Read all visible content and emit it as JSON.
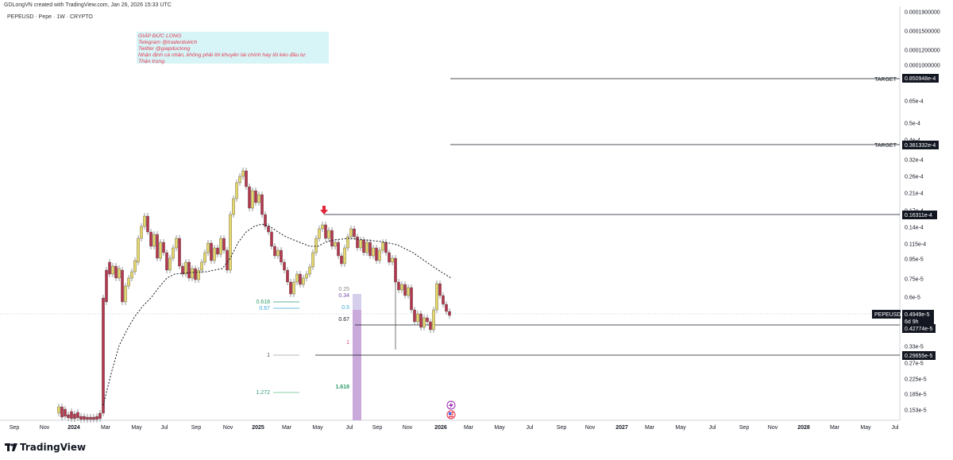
{
  "header": {
    "created_by": "GDLongVN created with TradingView.com, Jan 26, 2026 15:33 UTC",
    "symbol_line": "PEPEUSD · Pepe · 1W · CRYPTO"
  },
  "note": {
    "lines": [
      "GIÁP ĐỨC LONG",
      "Telegram @traderduklch",
      "Twitter @giapduclong",
      "Nhận định cá nhân, không phải lời khuyên tài chính hay lôi kéo đầu tư.",
      "Thận trọng."
    ]
  },
  "price_axis": {
    "ticks": [
      "0.0001900000",
      "0.0001500000",
      "0.0001200000",
      "0.0001000000",
      "0.80e-4",
      "0.65e-4",
      "0.5e-4",
      "0.4e-4",
      "0.32e-4",
      "0.26e-4",
      "0.21e-4",
      "0.17e-4",
      "0.14e-4",
      "0.115e-4",
      "0.95e-5",
      "0.75e-5",
      "0.6e-5",
      "0.33e-5",
      "0.27e-5",
      "0.225e-5",
      "0.185e-5",
      "0.153e-5"
    ]
  },
  "time_axis": {
    "labels": [
      "Sep",
      "Nov",
      "2024",
      "Mar",
      "May",
      "Jul",
      "Sep",
      "Nov",
      "2025",
      "Mar",
      "May",
      "Jul",
      "Sep",
      "Nov",
      "2026",
      "Mar",
      "May",
      "Jul",
      "Sep",
      "Nov",
      "2027",
      "Mar",
      "May",
      "Jul",
      "Sep",
      "Nov",
      "2028",
      "Mar",
      "May",
      "Jul"
    ],
    "bold": [
      "2024",
      "2025",
      "2026",
      "2027",
      "2028"
    ]
  },
  "levels": [
    {
      "label": "TARGET",
      "price": "0.850948e-4",
      "color": "#131722"
    },
    {
      "label": "TARGET",
      "price": "0.381332e-4",
      "color": "#131722"
    },
    {
      "label": "",
      "price": "0.16311e-4",
      "color": "#131722"
    },
    {
      "label": "",
      "price": "0.42774e-5",
      "color": "#131722"
    },
    {
      "label": "",
      "price": "0.29655e-5",
      "color": "#131722"
    }
  ],
  "current_price": {
    "symbol": "PEPEUSD",
    "price": "0.4949e-5",
    "countdown": "6d 9h"
  },
  "fib_left": [
    "0.618",
    "0.67",
    "1",
    "1.272"
  ],
  "fib_right": [
    "0.25",
    "0.34",
    "0.5",
    "0.67",
    "1",
    "1.618"
  ],
  "colors": {
    "bull": "#e7d96a",
    "bear": "#b5364c",
    "fib_purple": "#c3a1d6",
    "fib_green": "#2e9d6b",
    "fib_blue": "#3aa7d6",
    "arrow": "#e1263b"
  },
  "footer": {
    "brand": "TradingView"
  }
}
